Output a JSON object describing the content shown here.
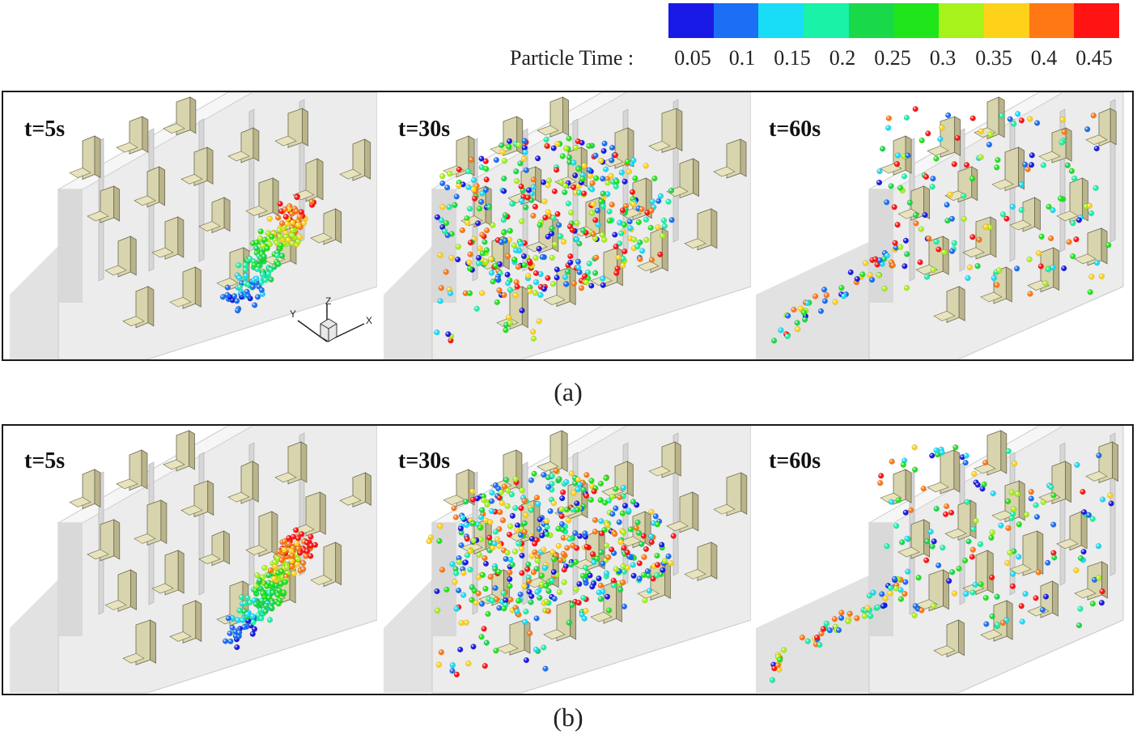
{
  "colorbar": {
    "title": "Particle Time :",
    "ticks": [
      "0.05",
      "0.1",
      "0.15",
      "0.2",
      "0.25",
      "0.3",
      "0.35",
      "0.4",
      "0.45"
    ],
    "colors": [
      "#1a1ae6",
      "#1a6ff5",
      "#19dcf7",
      "#19f2a7",
      "#19d94a",
      "#1ee61a",
      "#a6f21a",
      "#ffd21a",
      "#ff7814",
      "#ff1414"
    ]
  },
  "panels": [
    {
      "id": "a",
      "caption": "(a)",
      "snapshots": [
        {
          "time_label": "t=5s",
          "spread": "plume",
          "count": 180
        },
        {
          "time_label": "t=30s",
          "spread": "wide",
          "count": 420
        },
        {
          "time_label": "t=60s",
          "spread": "dispersed",
          "count": 190
        }
      ],
      "axes": {
        "x": "X",
        "y": "Y",
        "z": "Z"
      }
    },
    {
      "id": "b",
      "caption": "(b)",
      "snapshots": [
        {
          "time_label": "t=5s",
          "spread": "plume",
          "count": 230
        },
        {
          "time_label": "t=30s",
          "spread": "wide",
          "count": 480
        },
        {
          "time_label": "t=60s",
          "spread": "dispersed",
          "count": 200
        }
      ]
    }
  ]
}
